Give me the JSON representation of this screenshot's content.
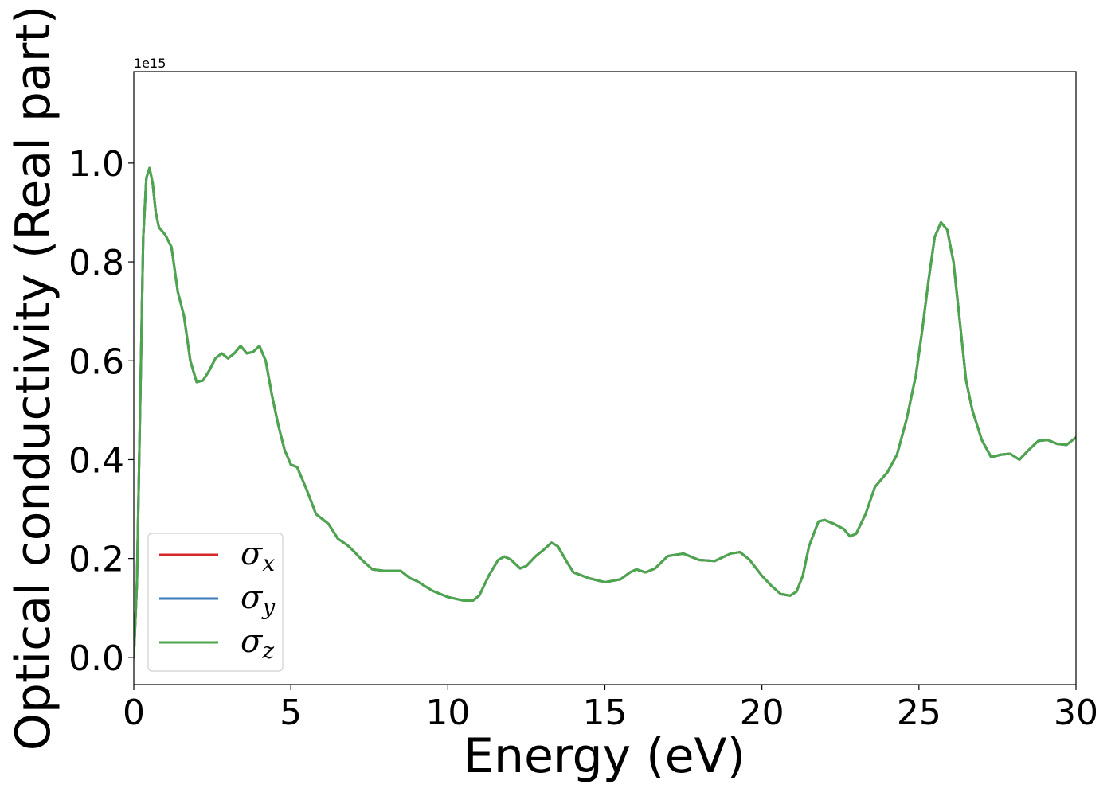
{
  "chart_data": {
    "type": "line",
    "xlabel": "Energy (eV)",
    "ylabel": "Optical conductivity (Real part)",
    "y_offset_text": "1e15",
    "y_scale": 1000000000000000.0,
    "xlim": [
      0,
      30
    ],
    "ylim": [
      -0.055,
      1.185
    ],
    "xticks": [
      0,
      5,
      10,
      15,
      20,
      25,
      30
    ],
    "xtick_labels": [
      "0",
      "5",
      "10",
      "15",
      "20",
      "25",
      "30"
    ],
    "yticks": [
      0.0,
      0.2,
      0.4,
      0.6,
      0.8,
      1.0
    ],
    "ytick_labels": [
      "0.0",
      "0.2",
      "0.4",
      "0.6",
      "0.8",
      "1.0"
    ],
    "grid": false,
    "legend": {
      "placement": "lower-left",
      "entries": [
        {
          "sym": "σ",
          "sub": "x",
          "color": "#d62728"
        },
        {
          "sym": "σ",
          "sub": "y",
          "color": "#3a7bb8"
        },
        {
          "sym": "σ",
          "sub": "z",
          "color": "#4ca64c"
        }
      ]
    },
    "x": [
      0,
      0.1,
      0.2,
      0.3,
      0.4,
      0.5,
      0.6,
      0.7,
      0.8,
      1.0,
      1.2,
      1.4,
      1.6,
      1.8,
      2.0,
      2.2,
      2.4,
      2.6,
      2.8,
      3.0,
      3.2,
      3.4,
      3.6,
      3.8,
      4.0,
      4.2,
      4.4,
      4.6,
      4.8,
      5.0,
      5.2,
      5.5,
      5.8,
      6.0,
      6.2,
      6.5,
      6.8,
      7.0,
      7.3,
      7.6,
      8.0,
      8.5,
      8.8,
      9.0,
      9.5,
      10.0,
      10.5,
      10.8,
      11.0,
      11.3,
      11.6,
      11.8,
      12.0,
      12.3,
      12.5,
      12.8,
      13.0,
      13.3,
      13.5,
      13.8,
      14.0,
      14.5,
      15.0,
      15.5,
      15.8,
      16.0,
      16.3,
      16.6,
      17.0,
      17.5,
      18.0,
      18.5,
      19.0,
      19.3,
      19.6,
      20.0,
      20.3,
      20.6,
      20.9,
      21.1,
      21.3,
      21.5,
      21.8,
      22.0,
      22.3,
      22.6,
      22.8,
      23.0,
      23.3,
      23.6,
      24.0,
      24.3,
      24.6,
      24.9,
      25.1,
      25.3,
      25.5,
      25.7,
      25.9,
      26.1,
      26.3,
      26.5,
      26.7,
      27.0,
      27.3,
      27.6,
      27.9,
      28.2,
      28.5,
      28.8,
      29.1,
      29.4,
      29.7,
      30.0
    ],
    "series": [
      {
        "name": "σx",
        "color": "#d62728",
        "values": [
          0.0,
          0.15,
          0.5,
          0.85,
          0.97,
          0.99,
          0.96,
          0.9,
          0.87,
          0.855,
          0.83,
          0.74,
          0.69,
          0.6,
          0.557,
          0.56,
          0.58,
          0.605,
          0.615,
          0.605,
          0.615,
          0.63,
          0.615,
          0.618,
          0.63,
          0.6,
          0.53,
          0.47,
          0.42,
          0.39,
          0.385,
          0.34,
          0.29,
          0.28,
          0.27,
          0.24,
          0.227,
          0.215,
          0.195,
          0.178,
          0.175,
          0.175,
          0.16,
          0.155,
          0.135,
          0.122,
          0.115,
          0.115,
          0.125,
          0.165,
          0.197,
          0.204,
          0.198,
          0.18,
          0.185,
          0.205,
          0.215,
          0.232,
          0.225,
          0.192,
          0.172,
          0.16,
          0.152,
          0.158,
          0.172,
          0.178,
          0.172,
          0.18,
          0.205,
          0.21,
          0.197,
          0.195,
          0.21,
          0.213,
          0.198,
          0.165,
          0.145,
          0.128,
          0.125,
          0.133,
          0.165,
          0.225,
          0.275,
          0.278,
          0.27,
          0.26,
          0.245,
          0.25,
          0.29,
          0.345,
          0.375,
          0.41,
          0.48,
          0.57,
          0.66,
          0.76,
          0.85,
          0.88,
          0.865,
          0.8,
          0.68,
          0.56,
          0.5,
          0.44,
          0.405,
          0.41,
          0.412,
          0.4,
          0.42,
          0.438,
          0.44,
          0.432,
          0.43,
          0.445
        ]
      },
      {
        "name": "σy",
        "color": "#3a7bb8",
        "values": [
          0.0,
          0.15,
          0.5,
          0.85,
          0.97,
          0.99,
          0.96,
          0.9,
          0.87,
          0.855,
          0.83,
          0.74,
          0.69,
          0.6,
          0.557,
          0.56,
          0.58,
          0.605,
          0.615,
          0.605,
          0.615,
          0.63,
          0.615,
          0.618,
          0.63,
          0.6,
          0.53,
          0.47,
          0.42,
          0.39,
          0.385,
          0.34,
          0.29,
          0.28,
          0.27,
          0.24,
          0.227,
          0.215,
          0.195,
          0.178,
          0.175,
          0.175,
          0.16,
          0.155,
          0.135,
          0.122,
          0.115,
          0.115,
          0.125,
          0.165,
          0.197,
          0.204,
          0.198,
          0.18,
          0.185,
          0.205,
          0.215,
          0.232,
          0.225,
          0.192,
          0.172,
          0.16,
          0.152,
          0.158,
          0.172,
          0.178,
          0.172,
          0.18,
          0.205,
          0.21,
          0.197,
          0.195,
          0.21,
          0.213,
          0.198,
          0.165,
          0.145,
          0.128,
          0.125,
          0.133,
          0.165,
          0.225,
          0.275,
          0.278,
          0.27,
          0.26,
          0.245,
          0.25,
          0.29,
          0.345,
          0.375,
          0.41,
          0.48,
          0.57,
          0.66,
          0.76,
          0.85,
          0.88,
          0.865,
          0.8,
          0.68,
          0.56,
          0.5,
          0.44,
          0.405,
          0.41,
          0.412,
          0.4,
          0.42,
          0.438,
          0.44,
          0.432,
          0.43,
          0.445
        ]
      },
      {
        "name": "σz",
        "color": "#4ca64c",
        "values": [
          0.0,
          0.15,
          0.5,
          0.85,
          0.97,
          0.99,
          0.96,
          0.9,
          0.87,
          0.855,
          0.83,
          0.74,
          0.69,
          0.6,
          0.557,
          0.56,
          0.58,
          0.605,
          0.615,
          0.605,
          0.615,
          0.63,
          0.615,
          0.618,
          0.63,
          0.6,
          0.53,
          0.47,
          0.42,
          0.39,
          0.385,
          0.34,
          0.29,
          0.28,
          0.27,
          0.24,
          0.227,
          0.215,
          0.195,
          0.178,
          0.175,
          0.175,
          0.16,
          0.155,
          0.135,
          0.122,
          0.115,
          0.115,
          0.125,
          0.165,
          0.197,
          0.204,
          0.198,
          0.18,
          0.185,
          0.205,
          0.215,
          0.232,
          0.225,
          0.192,
          0.172,
          0.16,
          0.152,
          0.158,
          0.172,
          0.178,
          0.172,
          0.18,
          0.205,
          0.21,
          0.197,
          0.195,
          0.21,
          0.213,
          0.198,
          0.165,
          0.145,
          0.128,
          0.125,
          0.133,
          0.165,
          0.225,
          0.275,
          0.278,
          0.27,
          0.26,
          0.245,
          0.25,
          0.29,
          0.345,
          0.375,
          0.41,
          0.48,
          0.57,
          0.66,
          0.76,
          0.85,
          0.88,
          0.865,
          0.8,
          0.68,
          0.56,
          0.5,
          0.44,
          0.405,
          0.41,
          0.412,
          0.4,
          0.42,
          0.438,
          0.44,
          0.432,
          0.43,
          0.445
        ]
      }
    ]
  }
}
